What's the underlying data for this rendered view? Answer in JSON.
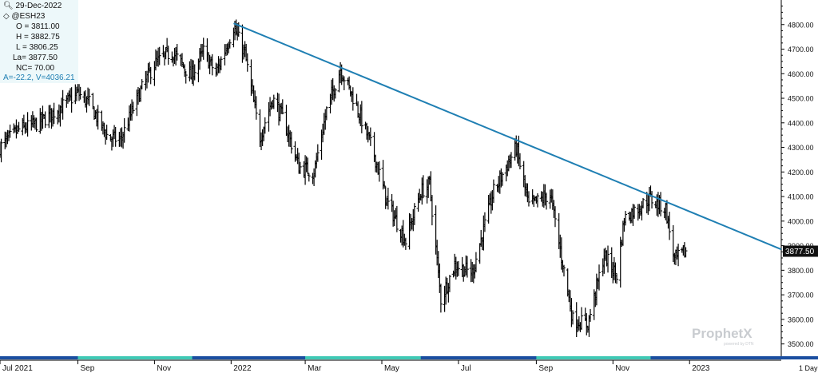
{
  "info": {
    "date": "29-Dec-2022",
    "symbol": "@ESH23",
    "open": "O = 3811.00",
    "high": "H = 3882.75",
    "low": "L = 3806.25",
    "last": "La= 3877.50",
    "net_change": "NC= 70.00",
    "indicator": "A=-22.2, V=4036.21"
  },
  "logo": {
    "brand": "ProphetX",
    "tagline": "powered by DTN"
  },
  "colors": {
    "bars": "#000000",
    "trendline": "#1f7fb3",
    "timeline": "#1a4ea0",
    "timeline_alt": "#3fc9b5",
    "price_tag_bg": "#111111"
  },
  "chart_data": {
    "type": "ohlc",
    "instrument": "@ESH23",
    "interval": "1 Day",
    "last_price_label": "3877.50",
    "ylim": [
      3450,
      4900
    ],
    "yticks": [
      3500,
      3600,
      3700,
      3800,
      3900,
      4000,
      4100,
      4200,
      4300,
      4400,
      4500,
      4600,
      4700,
      4800
    ],
    "x_labels": [
      "Jul 2021",
      "Sep",
      "Nov",
      "2022",
      "Mar",
      "May",
      "Jul",
      "Sep",
      "Nov",
      "2023"
    ],
    "x_label_months": [
      "2021-07",
      "2021-09",
      "2021-11",
      "2022-01",
      "2022-03",
      "2022-05",
      "2022-07",
      "2022-09",
      "2022-11",
      "2023-01"
    ],
    "x_range": [
      "2021-07-01",
      "2023-03-15"
    ],
    "grid": false,
    "closes": [
      [
        "2021-07-01",
        4300
      ],
      [
        "2021-07-15",
        4370
      ],
      [
        "2021-08-01",
        4400
      ],
      [
        "2021-08-15",
        4450
      ],
      [
        "2021-09-01",
        4520
      ],
      [
        "2021-09-10",
        4480
      ],
      [
        "2021-09-25",
        4340
      ],
      [
        "2021-10-05",
        4330
      ],
      [
        "2021-10-20",
        4520
      ],
      [
        "2021-11-01",
        4640
      ],
      [
        "2021-11-15",
        4690
      ],
      [
        "2021-11-30",
        4590
      ],
      [
        "2021-12-10",
        4690
      ],
      [
        "2021-12-20",
        4600
      ],
      [
        "2022-01-03",
        4790
      ],
      [
        "2022-01-12",
        4680
      ],
      [
        "2022-01-24",
        4340
      ],
      [
        "2022-02-03",
        4500
      ],
      [
        "2022-02-12",
        4410
      ],
      [
        "2022-02-24",
        4220
      ],
      [
        "2022-03-08",
        4200
      ],
      [
        "2022-03-18",
        4450
      ],
      [
        "2022-03-29",
        4620
      ],
      [
        "2022-04-10",
        4480
      ],
      [
        "2022-04-25",
        4270
      ],
      [
        "2022-05-05",
        4080
      ],
      [
        "2022-05-20",
        3920
      ],
      [
        "2022-06-01",
        4120
      ],
      [
        "2022-06-08",
        4150
      ],
      [
        "2022-06-17",
        3680
      ],
      [
        "2022-06-28",
        3820
      ],
      [
        "2022-07-12",
        3790
      ],
      [
        "2022-07-29",
        4120
      ],
      [
        "2022-08-16",
        4300
      ],
      [
        "2022-08-26",
        4060
      ],
      [
        "2022-09-12",
        4110
      ],
      [
        "2022-09-30",
        3600
      ],
      [
        "2022-10-12",
        3580
      ],
      [
        "2022-10-25",
        3860
      ],
      [
        "2022-11-04",
        3780
      ],
      [
        "2022-11-10",
        4010
      ],
      [
        "2022-11-30",
        4090
      ],
      [
        "2022-12-01",
        4090
      ],
      [
        "2022-12-13",
        4050
      ],
      [
        "2022-12-20",
        3840
      ],
      [
        "2022-12-29",
        3877.5
      ]
    ],
    "trendline": {
      "start": [
        "2022-01-03",
        4805
      ],
      "end": [
        "2023-03-15",
        3885
      ]
    }
  }
}
